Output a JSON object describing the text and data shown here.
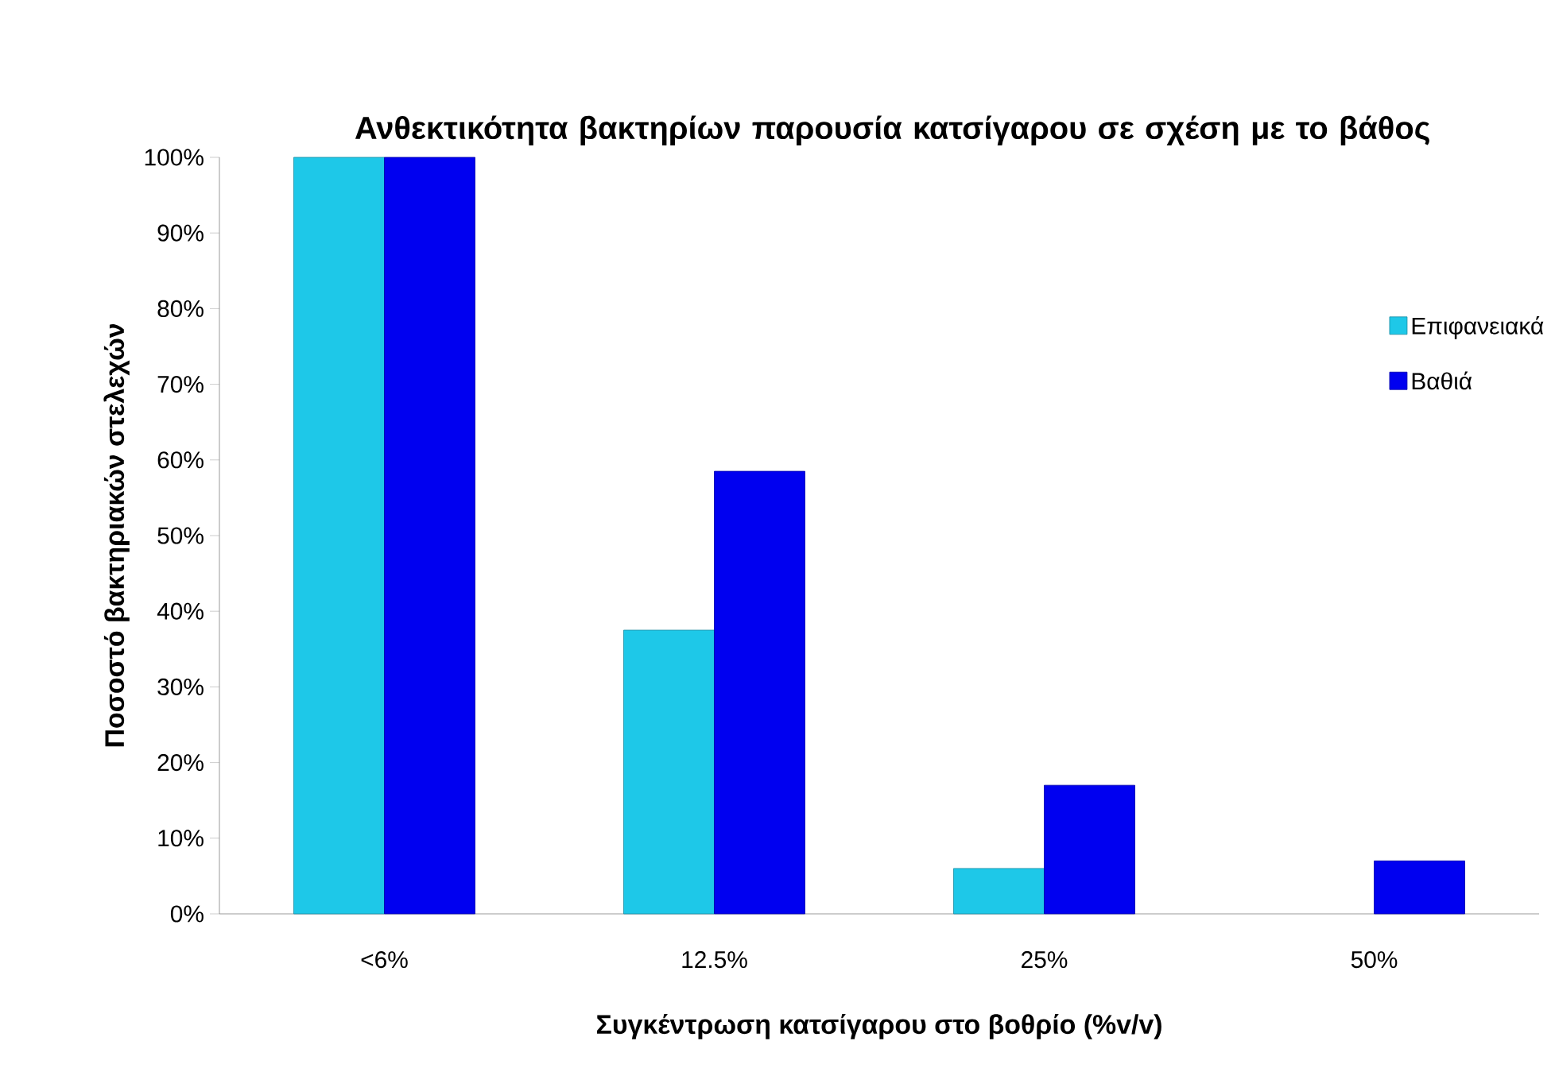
{
  "chart_data": {
    "type": "bar",
    "title": "Ανθεκτικότητα βακτηρίων παρουσία κατσίγαρου σε σχέση με το βάθος",
    "xlabel": "Συγκέντρωση κατσίγαρου στο βοθρίο (%v/v)",
    "ylabel": "Ποσοστό βακτηριακών στελεχών",
    "categories": [
      "<6%",
      "12.5%",
      "25%",
      "50%"
    ],
    "series": [
      {
        "name": "Επιφανειακά",
        "color": "#1ec8e8",
        "values": [
          100,
          37.5,
          6,
          null
        ]
      },
      {
        "name": "Βαθιά",
        "color": "#0000f0",
        "values": [
          100,
          58.5,
          17,
          7
        ]
      }
    ],
    "ylim": [
      0,
      100
    ],
    "yticks": [
      {
        "value": 0,
        "label": "0%"
      },
      {
        "value": 10,
        "label": "10%"
      },
      {
        "value": 20,
        "label": "20%"
      },
      {
        "value": 30,
        "label": "30%"
      },
      {
        "value": 40,
        "label": "40%"
      },
      {
        "value": 50,
        "label": "50%"
      },
      {
        "value": 60,
        "label": "60%"
      },
      {
        "value": 70,
        "label": "70%"
      },
      {
        "value": 80,
        "label": "80%"
      },
      {
        "value": 90,
        "label": "90%"
      },
      {
        "value": 100,
        "label": "100%"
      }
    ],
    "legend": "right",
    "grid": false
  }
}
